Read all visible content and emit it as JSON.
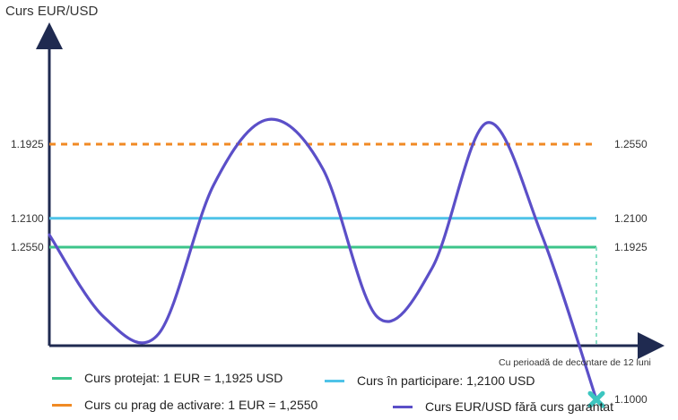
{
  "chart_data": {
    "type": "line",
    "title": "Curs EUR/USD",
    "xlabel": "Cu perioadă de decontare de 12 luni",
    "y_ticks_left": [
      "1.2550",
      "1.2100",
      "1.1925"
    ],
    "reference_lines": [
      {
        "name": "Curs protejat: 1 EUR = 1,1925 USD",
        "value": 1.1925,
        "label": "1.1925",
        "color": "#3cc48a",
        "style": "solid"
      },
      {
        "name": "Curs în participare: 1,2100 USD",
        "value": 1.21,
        "label": "1.2100",
        "color": "#4fc3e8",
        "style": "solid"
      },
      {
        "name": "Curs cu prag de activare: 1 EUR = 1,2550",
        "value": 1.255,
        "label": "1.2550",
        "color": "#f08a24",
        "style": "dashed"
      }
    ],
    "series": [
      {
        "name": "Curs EUR/USD fără curs garantat",
        "color": "#5b4fc8",
        "x": [
          0,
          0.1,
          0.2,
          0.3,
          0.4,
          0.5,
          0.6,
          0.7,
          0.8,
          0.9,
          1.0
        ],
        "y": [
          1.2,
          1.15,
          1.14,
          1.23,
          1.27,
          1.24,
          1.15,
          1.18,
          1.268,
          1.2,
          1.1
        ]
      }
    ],
    "end_marker": {
      "value": 1.1,
      "label": "1.1000",
      "color": "#3cc6c0"
    },
    "grid": false
  }
}
